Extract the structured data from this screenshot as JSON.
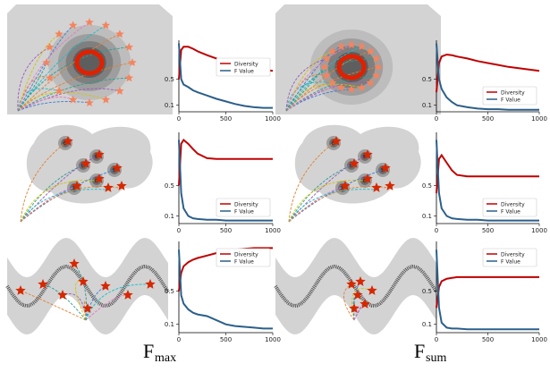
{
  "chart_data": [
    {
      "type": "line",
      "x": [
        0,
        25,
        50,
        100,
        150,
        200,
        300,
        400,
        500,
        600,
        700,
        800,
        900,
        1000
      ],
      "series": [
        {
          "name": "Diversity",
          "color": "#c00000",
          "values": [
            0.5,
            0.95,
            1.0,
            1.0,
            0.97,
            0.93,
            0.87,
            0.82,
            0.77,
            0.73,
            0.7,
            0.67,
            0.65,
            0.63
          ]
        },
        {
          "name": "F Value",
          "color": "#2b5f8a",
          "values": [
            1.05,
            0.5,
            0.42,
            0.38,
            0.33,
            0.3,
            0.25,
            0.2,
            0.16,
            0.12,
            0.09,
            0.07,
            0.06,
            0.06
          ]
        }
      ],
      "xlim": [
        0,
        1000
      ],
      "xticks": [
        0,
        500,
        1000
      ],
      "ylim": [
        0,
        1.1
      ],
      "yticks": [
        0.1,
        0.5
      ],
      "legend": "center right"
    },
    {
      "type": "line",
      "x": [
        0,
        25,
        50,
        100,
        150,
        200,
        300,
        400,
        500,
        600,
        700,
        800,
        900,
        1000
      ],
      "series": [
        {
          "name": "Diversity",
          "color": "#c00000",
          "values": [
            0.3,
            0.75,
            0.85,
            0.88,
            0.87,
            0.85,
            0.82,
            0.78,
            0.75,
            0.72,
            0.69,
            0.67,
            0.65,
            0.63
          ]
        },
        {
          "name": "F Value",
          "color": "#2b5f8a",
          "values": [
            1.05,
            0.5,
            0.35,
            0.22,
            0.15,
            0.1,
            0.07,
            0.05,
            0.04,
            0.04,
            0.03,
            0.03,
            0.03,
            0.03
          ]
        }
      ],
      "xlim": [
        0,
        1000
      ],
      "xticks": [
        0,
        500,
        1000
      ],
      "ylim": [
        0,
        1.1
      ],
      "yticks": [
        0.1,
        0.5
      ],
      "legend": "lower right"
    },
    {
      "type": "line",
      "x": [
        0,
        25,
        50,
        100,
        150,
        200,
        300,
        400,
        500,
        600,
        700,
        800,
        900,
        1000
      ],
      "series": [
        {
          "name": "Diversity",
          "color": "#c00000",
          "values": [
            0.5,
            1.05,
            1.1,
            1.05,
            0.98,
            0.92,
            0.86,
            0.85,
            0.85,
            0.85,
            0.85,
            0.85,
            0.85,
            0.85
          ]
        },
        {
          "name": "F Value",
          "color": "#2b5f8a",
          "values": [
            1.1,
            0.4,
            0.2,
            0.1,
            0.07,
            0.06,
            0.05,
            0.05,
            0.04,
            0.04,
            0.04,
            0.04,
            0.04,
            0.04
          ]
        }
      ],
      "xlim": [
        0,
        1000
      ],
      "xticks": [
        0,
        500,
        1000
      ],
      "ylim": [
        0,
        1.2
      ],
      "yticks": [
        0.1,
        0.5
      ],
      "legend": "lower right"
    },
    {
      "type": "line",
      "x": [
        0,
        25,
        50,
        100,
        150,
        200,
        300,
        400,
        500,
        600,
        700,
        800,
        900,
        1000
      ],
      "series": [
        {
          "name": "Diversity",
          "color": "#c00000",
          "values": [
            0.4,
            0.85,
            0.9,
            0.8,
            0.7,
            0.64,
            0.62,
            0.62,
            0.62,
            0.62,
            0.62,
            0.62,
            0.62,
            0.62
          ]
        },
        {
          "name": "F Value",
          "color": "#2b5f8a",
          "values": [
            1.1,
            0.4,
            0.2,
            0.1,
            0.07,
            0.06,
            0.05,
            0.05,
            0.04,
            0.04,
            0.04,
            0.04,
            0.04,
            0.04
          ]
        }
      ],
      "xlim": [
        0,
        1000
      ],
      "xticks": [
        0,
        500,
        1000
      ],
      "ylim": [
        0,
        1.2
      ],
      "yticks": [
        0.1,
        0.5
      ],
      "legend": "lower right"
    },
    {
      "type": "line",
      "x": [
        0,
        25,
        50,
        100,
        150,
        200,
        300,
        400,
        500,
        600,
        700,
        800,
        900,
        1000
      ],
      "series": [
        {
          "name": "Diversity",
          "color": "#c00000",
          "values": [
            0.5,
            0.72,
            0.8,
            0.85,
            0.88,
            0.9,
            0.93,
            0.96,
            0.98,
            1.0,
            1.01,
            1.02,
            1.02,
            1.02
          ]
        },
        {
          "name": "F Value",
          "color": "#2b5f8a",
          "values": [
            1.0,
            0.45,
            0.35,
            0.28,
            0.24,
            0.22,
            0.2,
            0.15,
            0.1,
            0.08,
            0.07,
            0.06,
            0.05,
            0.05
          ]
        }
      ],
      "xlim": [
        0,
        1000
      ],
      "xticks": [
        0,
        500,
        1000
      ],
      "ylim": [
        0,
        1.1
      ],
      "yticks": [
        0.1,
        0.5
      ],
      "legend": "upper right"
    },
    {
      "type": "line",
      "x": [
        0,
        25,
        50,
        100,
        150,
        200,
        300,
        400,
        500,
        600,
        700,
        800,
        900,
        1000
      ],
      "series": [
        {
          "name": "Diversity",
          "color": "#c00000",
          "values": [
            0.3,
            0.55,
            0.62,
            0.65,
            0.66,
            0.67,
            0.67,
            0.67,
            0.67,
            0.67,
            0.67,
            0.67,
            0.67,
            0.67
          ]
        },
        {
          "name": "F Value",
          "color": "#2b5f8a",
          "values": [
            1.0,
            0.3,
            0.12,
            0.06,
            0.05,
            0.05,
            0.04,
            0.04,
            0.04,
            0.04,
            0.04,
            0.04,
            0.04,
            0.04
          ]
        }
      ],
      "xlim": [
        0,
        1000
      ],
      "xticks": [
        0,
        500,
        1000
      ],
      "ylim": [
        0,
        1.1
      ],
      "yticks": [
        0.1,
        0.5
      ],
      "legend": "upper right"
    }
  ],
  "captions": [
    {
      "symbol": "F",
      "subscript": "max"
    },
    {
      "symbol": "F",
      "subscript": "sum"
    }
  ]
}
